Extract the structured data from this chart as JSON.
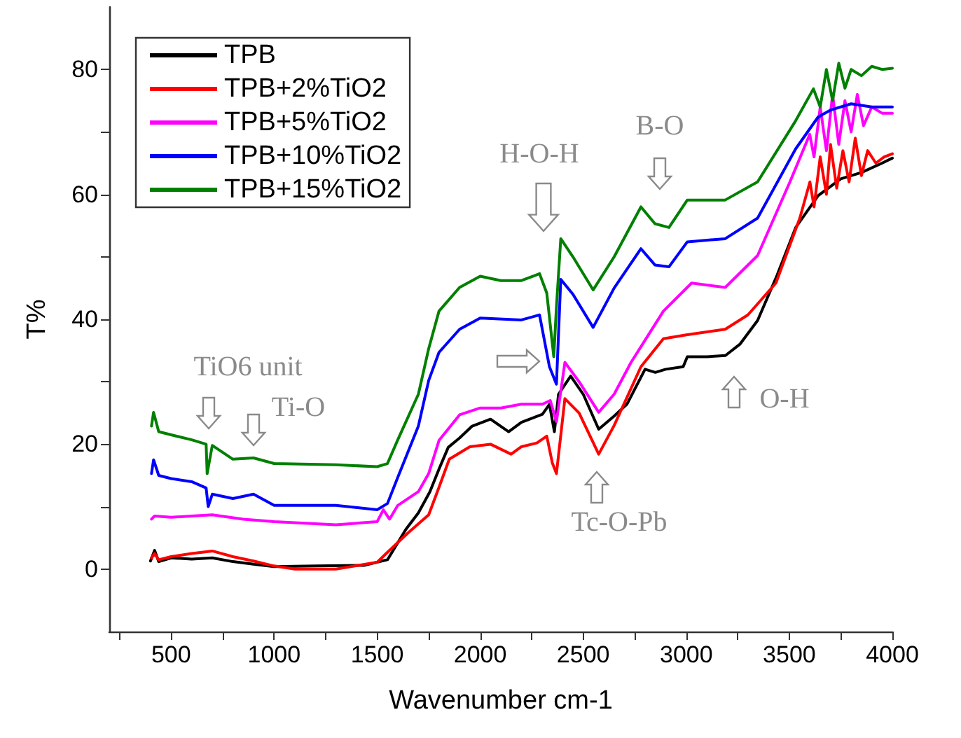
{
  "chart_data": {
    "type": "line",
    "xlabel": "Wavenumber cm-1",
    "ylabel": "T%",
    "xlim": [
      200,
      4000
    ],
    "ylim": [
      -10,
      90
    ],
    "xticks": [
      {
        "value": 250,
        "label": null
      },
      500,
      {
        "value": 750,
        "label": null
      },
      1000,
      {
        "value": 1250,
        "label": null
      },
      1500,
      {
        "value": 1750,
        "label": null
      },
      2000,
      {
        "value": 2250,
        "label": null
      },
      2500,
      {
        "value": 2750,
        "label": null
      },
      3000,
      {
        "value": 3250,
        "label": null
      },
      3500,
      {
        "value": 3750,
        "label": null
      },
      4000
    ],
    "yticks": [
      0,
      {
        "value": 10,
        "label": null
      },
      20,
      {
        "value": 30,
        "label": null
      },
      40,
      {
        "value": 50,
        "label": null
      },
      60,
      {
        "value": 70,
        "label": null
      },
      80
    ],
    "legend": "top left",
    "series": [
      {
        "name": "TPB",
        "color": "#000000",
        "x": [
          400,
          420,
          440,
          500,
          600,
          700,
          800,
          900,
          1000,
          1200,
          1435,
          1550,
          1640,
          1700,
          1756,
          1800,
          1845,
          1900,
          1961,
          2050,
          2138,
          2200,
          2302,
          2336,
          2360,
          2380,
          2439,
          2500,
          2575,
          2650,
          2712,
          2800,
          2850,
          2900,
          2985,
          3005,
          3100,
          3190,
          3260,
          3346,
          3440,
          3531,
          3640,
          3750,
          3850,
          3950,
          4000
        ],
        "values": [
          1.3,
          3,
          1.2,
          1.8,
          1.6,
          1.8,
          1.2,
          0.8,
          0.4,
          0.5,
          0.6,
          1.5,
          6.4,
          9,
          12.4,
          16,
          19.5,
          21,
          22.9,
          24,
          22,
          23.5,
          24.8,
          26.4,
          22,
          28,
          30.9,
          28,
          22.4,
          24.5,
          26.4,
          32,
          31.5,
          32,
          32.4,
          34,
          34,
          34.2,
          36,
          39.8,
          47,
          54.7,
          59.8,
          62.5,
          63.5,
          65,
          65.8
        ]
      },
      {
        "name": "TPB+2%TiO2",
        "color": "#ff0000",
        "x": [
          405,
          420,
          440,
          500,
          600,
          700,
          800,
          900,
          1000,
          1100,
          1300,
          1500,
          1550,
          1650,
          1750,
          1800,
          1850,
          1950,
          2050,
          2150,
          2200,
          2275,
          2323,
          2350,
          2370,
          2411,
          2480,
          2575,
          2650,
          2780,
          2889,
          3000,
          3189,
          3299,
          3435,
          3551,
          3600,
          3620,
          3650,
          3680,
          3700,
          3730,
          3760,
          3790,
          3820,
          3850,
          3880,
          3920,
          3960,
          4000
        ],
        "values": [
          1.8,
          2.5,
          1.5,
          2,
          2.5,
          2.9,
          2,
          1.3,
          0.5,
          0,
          0,
          1.1,
          2.7,
          5.8,
          8.7,
          13.1,
          17.6,
          19.6,
          20,
          18.4,
          19.6,
          20.2,
          21.3,
          17,
          15.3,
          27.3,
          25,
          18.4,
          23,
          32.4,
          36.9,
          37.5,
          38.4,
          40.7,
          45.8,
          56.2,
          62,
          58,
          66,
          60,
          68,
          61,
          67,
          62,
          69,
          63,
          67,
          65,
          66,
          66.5
        ]
      },
      {
        "name": "TPB+5%TiO2",
        "color": "#ff00ff",
        "x": [
          405,
          420,
          500,
          600,
          700,
          850,
          1000,
          1300,
          1500,
          1530,
          1560,
          1600,
          1700,
          1750,
          1800,
          1900,
          2000,
          2100,
          2200,
          2302,
          2340,
          2370,
          2411,
          2480,
          2575,
          2650,
          2732,
          2889,
          3026,
          3189,
          3346,
          3503,
          3599,
          3620,
          3650,
          3680,
          3710,
          3740,
          3770,
          3800,
          3830,
          3860,
          3900,
          3950,
          4000
        ],
        "values": [
          8,
          8.5,
          8.3,
          8.5,
          8.7,
          8,
          7.6,
          7.1,
          7.6,
          9.5,
          8,
          10.2,
          12.4,
          15.3,
          20.6,
          24.7,
          25.8,
          25.8,
          26.4,
          26.4,
          27,
          23.6,
          33.1,
          30,
          25.1,
          28,
          33.1,
          41.3,
          45.8,
          45.1,
          50.2,
          62,
          69.6,
          66,
          74,
          67,
          76,
          68,
          75,
          70,
          76,
          71,
          74,
          73,
          73
        ]
      },
      {
        "name": "TPB+10%TiO2",
        "color": "#0000ff",
        "x": [
          405,
          415,
          440,
          500,
          600,
          670,
          680,
          700,
          800,
          900,
          1000,
          1300,
          1500,
          1550,
          1600,
          1700,
          1750,
          1800,
          1900,
          2000,
          2200,
          2288,
          2336,
          2370,
          2391,
          2450,
          2548,
          2650,
          2780,
          2848,
          2916,
          3005,
          3189,
          3346,
          3531,
          3640,
          3700,
          3800,
          3900,
          4000
        ],
        "values": [
          15.3,
          17.5,
          15,
          14.5,
          14,
          13,
          10,
          12,
          11.3,
          12,
          10.2,
          10.2,
          9.5,
          10.5,
          14.7,
          22.9,
          30.2,
          34.7,
          38.4,
          40.2,
          39.9,
          40.7,
          32.4,
          29.6,
          46.4,
          44,
          38.7,
          45,
          51.3,
          48.7,
          48.4,
          52.4,
          52.9,
          56.2,
          67.3,
          72.4,
          73.5,
          74.5,
          74,
          74
        ]
      },
      {
        "name": "TPB+15%TiO2",
        "color": "#008000",
        "x": [
          405,
          415,
          440,
          500,
          600,
          670,
          675,
          700,
          800,
          900,
          1000,
          1300,
          1500,
          1550,
          1600,
          1700,
          1750,
          1800,
          1900,
          2000,
          2100,
          2200,
          2288,
          2323,
          2357,
          2370,
          2391,
          2450,
          2548,
          2650,
          2780,
          2848,
          2916,
          3005,
          3189,
          3346,
          3531,
          3617,
          3650,
          3680,
          3710,
          3740,
          3770,
          3800,
          3850,
          3900,
          3950,
          4000
        ],
        "values": [
          22.9,
          25.1,
          22,
          21.5,
          20.7,
          20,
          15.3,
          19.8,
          17.6,
          17.8,
          16.9,
          16.7,
          16.4,
          16.9,
          20.7,
          28,
          35.3,
          41.3,
          45.1,
          46.9,
          46.2,
          46.2,
          47.3,
          44.2,
          34,
          42,
          52.9,
          50,
          44.7,
          50,
          58,
          55.3,
          54.7,
          59.1,
          59.1,
          62,
          71.8,
          76.9,
          74,
          80,
          75,
          81,
          77,
          80,
          79,
          80.5,
          80,
          80.2
        ]
      }
    ],
    "annotations": [
      "TiO6 unit",
      "Ti-O",
      "H-O-H",
      "B-O",
      "O-H",
      "Tc-O-Pb"
    ]
  }
}
